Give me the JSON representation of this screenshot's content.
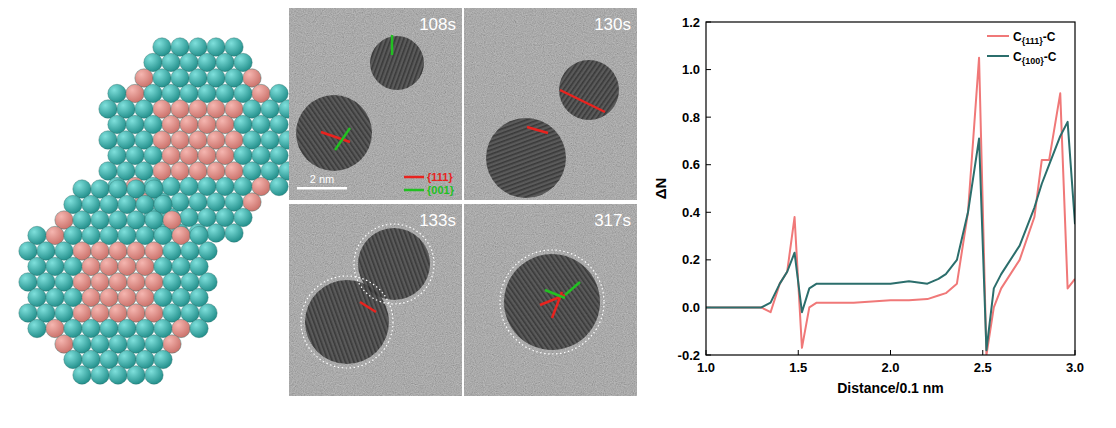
{
  "chart_data": {
    "type": "line",
    "x_label": "Distance/0.1 nm",
    "y_label": "ΔN",
    "x": [
      1.0,
      1.1,
      1.2,
      1.3,
      1.35,
      1.4,
      1.44,
      1.48,
      1.52,
      1.56,
      1.6,
      1.7,
      1.8,
      1.9,
      2.0,
      2.1,
      2.2,
      2.26,
      2.3,
      2.36,
      2.42,
      2.48,
      2.52,
      2.56,
      2.6,
      2.7,
      2.78,
      2.82,
      2.86,
      2.92,
      2.96,
      3.0
    ],
    "series": [
      {
        "name": "C{111}-C",
        "color": "#f07878",
        "values": [
          0,
          0,
          0,
          0,
          -0.02,
          0.1,
          0.15,
          0.38,
          -0.17,
          0.0,
          0.02,
          0.02,
          0.02,
          0.025,
          0.03,
          0.03,
          0.035,
          0.05,
          0.06,
          0.1,
          0.4,
          1.05,
          -0.2,
          0.0,
          0.08,
          0.2,
          0.38,
          0.62,
          0.62,
          0.9,
          0.08,
          0.12
        ]
      },
      {
        "name": "C{100}-C",
        "color": "#2b6e6c",
        "values": [
          0,
          0,
          0,
          0,
          0.02,
          0.1,
          0.15,
          0.23,
          -0.02,
          0.08,
          0.1,
          0.1,
          0.1,
          0.1,
          0.1,
          0.11,
          0.1,
          0.12,
          0.14,
          0.2,
          0.4,
          0.71,
          -0.18,
          0.08,
          0.14,
          0.26,
          0.42,
          0.52,
          0.6,
          0.72,
          0.78,
          0.35
        ]
      }
    ],
    "xlim": [
      1.0,
      3.0
    ],
    "ylim": [
      -0.2,
      1.2
    ],
    "xticks": [
      {
        "value": 1.0,
        "label": "1.0"
      },
      1.5,
      {
        "value": 2.0,
        "label": "2.0"
      },
      2.5,
      {
        "value": 3.0,
        "label": "3.0"
      }
    ],
    "yticks": [
      -0.2,
      {
        "value": 0.0,
        "label": "0.0"
      },
      0.2,
      0.4,
      0.6,
      0.8,
      {
        "value": 1.0,
        "label": "1.0"
      },
      1.2
    ],
    "legend": "upper right"
  },
  "tem": {
    "frames": [
      "108s",
      "130s",
      "133s",
      "317s"
    ],
    "facets": [
      {
        "label": "{111}",
        "color": "#e8231f"
      },
      {
        "label": "{001}",
        "color": "#22c022"
      }
    ],
    "scale_bar": "2 nm"
  }
}
